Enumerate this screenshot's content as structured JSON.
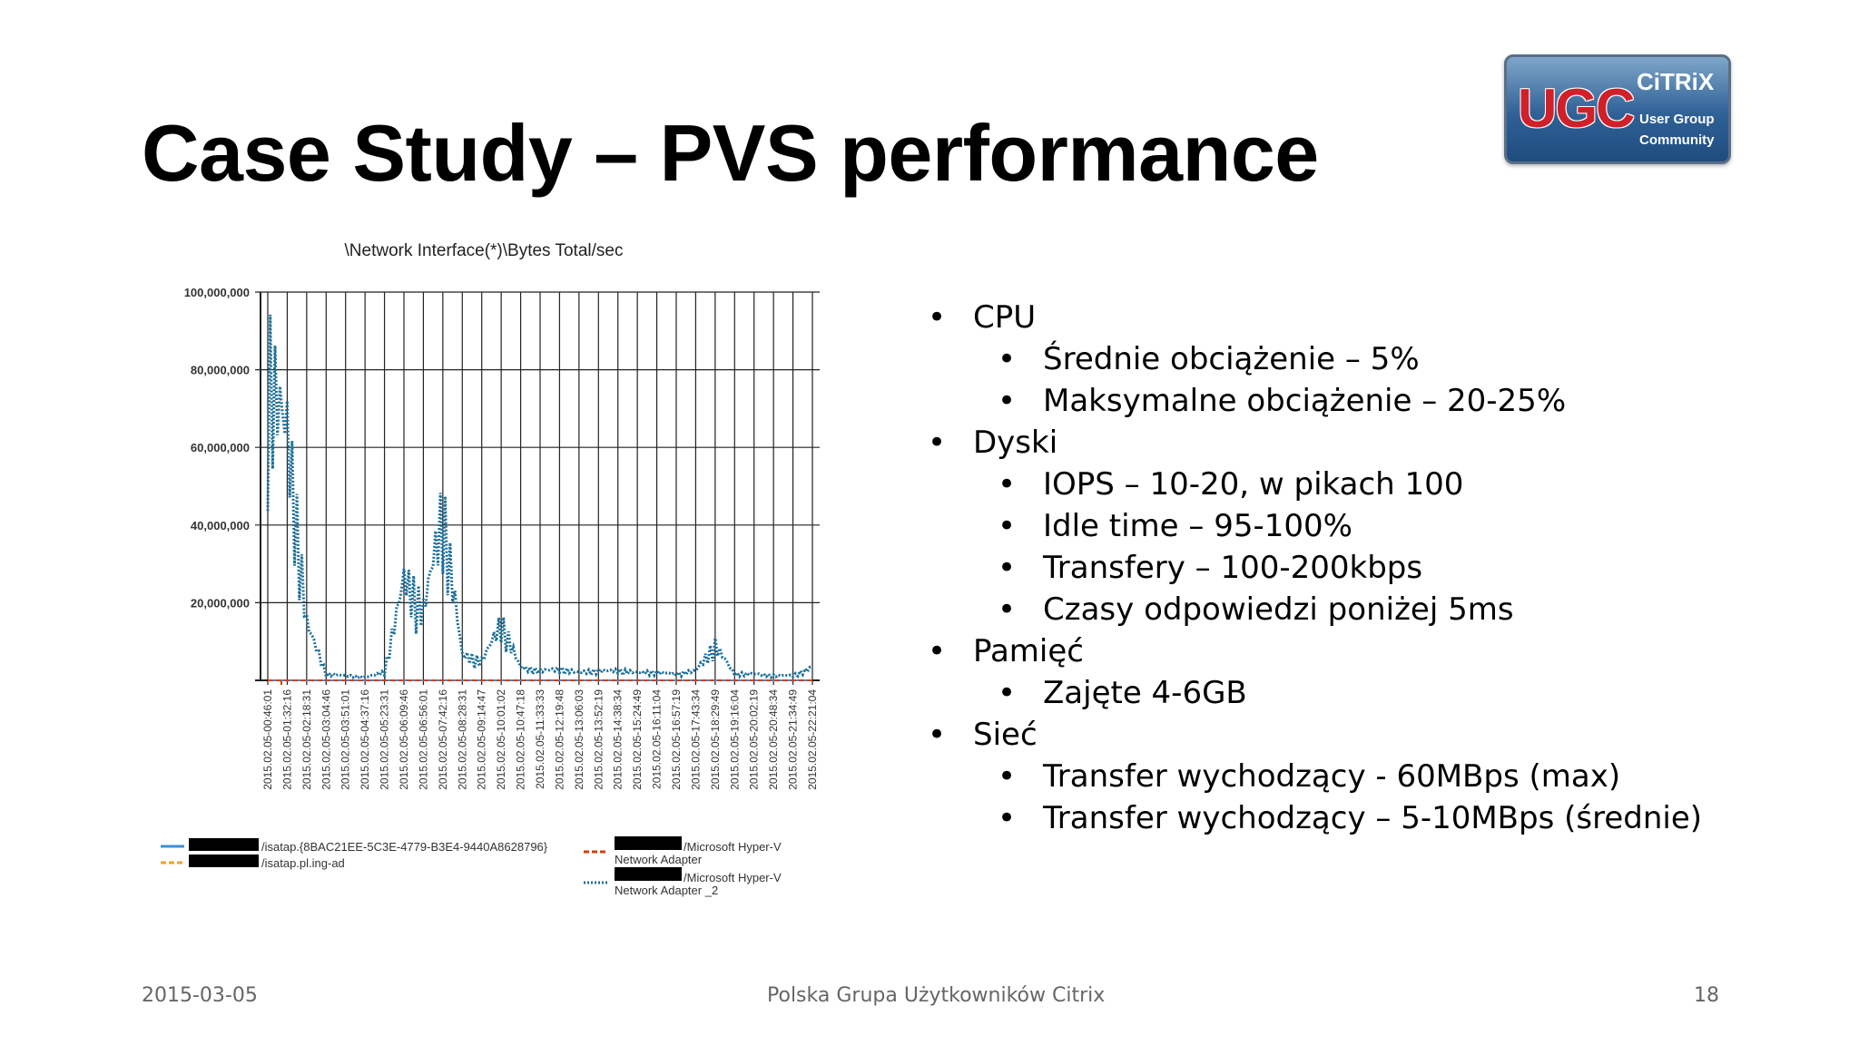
{
  "slide": {
    "title": "Case Study – PVS performance",
    "footer_date": "2015-03-05",
    "footer_center": "Polska Grupa Użytkowników Citrix",
    "page_number": "18"
  },
  "logo": {
    "ugc": "UGC",
    "citrix": "CiTRiX",
    "line1": "User Group",
    "line2": "Community"
  },
  "bullets": [
    {
      "level": 1,
      "text": "CPU"
    },
    {
      "level": 2,
      "text": "Średnie obciążenie – 5%"
    },
    {
      "level": 2,
      "text": "Maksymalne obciążenie – 20-25%"
    },
    {
      "level": 1,
      "text": "Dyski"
    },
    {
      "level": 2,
      "text": "IOPS – 10-20, w pikach 100"
    },
    {
      "level": 2,
      "text": "Idle time – 95-100%"
    },
    {
      "level": 2,
      "text": "Transfery – 100-200kbps"
    },
    {
      "level": 2,
      "text": "Czasy odpowiedzi poniżej 5ms"
    },
    {
      "level": 1,
      "text": "Pamięć"
    },
    {
      "level": 2,
      "text": "Zajęte 4-6GB"
    },
    {
      "level": 1,
      "text": "Sieć"
    },
    {
      "level": 2,
      "text": "Transfer wychodzący - 60MBps (max)"
    },
    {
      "level": 2,
      "text": "Transfer wychodzący – 5-10MBps (średnie)"
    }
  ],
  "chart_data": {
    "type": "line",
    "title": "\\Network Interface(*)\\Bytes Total/sec",
    "ylim": [
      0,
      100000000
    ],
    "y_ticks": [
      "100,000,000",
      "80,000,000",
      "60,000,000",
      "40,000,000",
      "20,000,000"
    ],
    "categories": [
      "2015.02.05-00:46:01",
      "2015.02.05-01:32:16",
      "2015.02.05-02:18:31",
      "2015.02.05-03:04:46",
      "2015.02.05-03:51:01",
      "2015.02.05-04:37:16",
      "2015.02.05-05:23:31",
      "2015.02.05-06:09:46",
      "2015.02.05-06:56:01",
      "2015.02.05-07:42:16",
      "2015.02.05-08:28:31",
      "2015.02.05-09:14:47",
      "2015.02.05-10:01:02",
      "2015.02.05-10:47:18",
      "2015.02.05-11:33:33",
      "2015.02.05-12:19:48",
      "2015.02.05-13:06:03",
      "2015.02.05-13:52:19",
      "2015.02.05-14:38:34",
      "2015.02.05-15:24:49",
      "2015.02.05-16:11:04",
      "2015.02.05-16:57:19",
      "2015.02.05-17:43:34",
      "2015.02.05-18:29:49",
      "2015.02.05-19:16:04",
      "2015.02.05-20:02:19",
      "2015.02.05-20:48:34",
      "2015.02.05-21:34:49",
      "2015.02.05-22:21:04"
    ],
    "series": [
      {
        "name": "/isatap.{8BAC21EE-5C3E-4779-B3E4-9440A8628796}",
        "color": "#3a8fd6",
        "style": "solid",
        "values": [
          0,
          0,
          0,
          0,
          0,
          0,
          0,
          0,
          0,
          0,
          0,
          0,
          0,
          0,
          0,
          0,
          0,
          0,
          0,
          0,
          0,
          0,
          0,
          0,
          0,
          0,
          0,
          0,
          0
        ]
      },
      {
        "name": "/isatap.pl.ing-ad",
        "color": "#f0a030",
        "style": "dashed",
        "values": [
          0,
          0,
          0,
          0,
          0,
          0,
          0,
          0,
          0,
          0,
          0,
          0,
          0,
          0,
          0,
          0,
          0,
          0,
          0,
          0,
          0,
          0,
          0,
          0,
          0,
          0,
          0,
          0,
          0
        ]
      },
      {
        "name": "/Microsoft Hyper-V Network Adapter",
        "color": "#d04010",
        "style": "dashed",
        "values": [
          0,
          0,
          0,
          0,
          0,
          0,
          0,
          0,
          0,
          0,
          0,
          0,
          0,
          0,
          0,
          0,
          0,
          0,
          0,
          0,
          0,
          0,
          0,
          0,
          0,
          0,
          0,
          0,
          0
        ]
      },
      {
        "name": "/Microsoft Hyper-V Network Adapter _2",
        "color": "#1a6e9a",
        "style": "dotted",
        "values": [
          97000000,
          78000000,
          18000000,
          2000000,
          1500000,
          1000000,
          2500000,
          32000000,
          22000000,
          53000000,
          8000000,
          6000000,
          18000000,
          4000000,
          3000000,
          3500000,
          2500000,
          3000000,
          3000000,
          2500000,
          2500000,
          2000000,
          3000000,
          11000000,
          2000000,
          2000000,
          1500000,
          1500000,
          4000000
        ]
      }
    ]
  }
}
